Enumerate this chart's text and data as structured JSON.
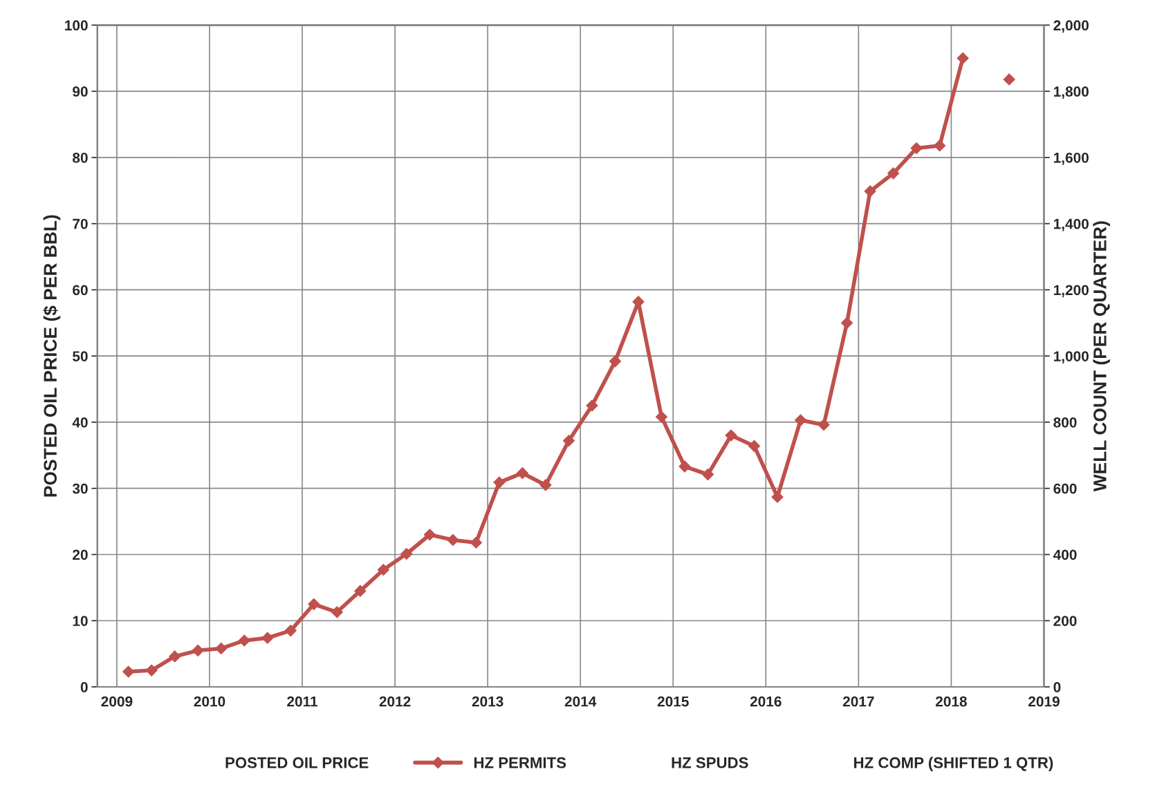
{
  "chart_data": {
    "type": "line",
    "ylabel": "POSTED OIL PRICE ($ PER BBL)",
    "y2label": "WELL COUNT (PER QUARTER)",
    "x": [
      2009.125,
      2009.375,
      2009.625,
      2009.875,
      2010.125,
      2010.375,
      2010.625,
      2010.875,
      2011.125,
      2011.375,
      2011.625,
      2011.875,
      2012.125,
      2012.375,
      2012.625,
      2012.875,
      2013.125,
      2013.375,
      2013.625,
      2013.875,
      2014.125,
      2014.375,
      2014.625,
      2014.875,
      2015.125,
      2015.375,
      2015.625,
      2015.875,
      2016.125,
      2016.375,
      2016.625,
      2016.875,
      2017.125,
      2017.375,
      2017.625,
      2017.875,
      2018.125,
      2018.375,
      2018.625
    ],
    "series": [
      {
        "name": "POSTED OIL PRICE",
        "values": [
          null,
          null,
          null,
          null,
          null,
          null,
          null,
          null,
          null,
          null,
          null,
          null,
          null,
          null,
          null,
          null,
          null,
          null,
          null,
          null,
          null,
          null,
          null,
          null,
          null,
          null,
          null,
          null,
          null,
          null,
          null,
          null,
          null,
          null,
          null,
          null,
          null,
          null,
          null
        ]
      },
      {
        "name": "HZ PERMITS",
        "color": "#c0504d",
        "axis": "y2",
        "marker": "diamond",
        "values": [
          46,
          50,
          92,
          110,
          116,
          140,
          148,
          170,
          250,
          226,
          290,
          354,
          402,
          460,
          444,
          436,
          618,
          646,
          610,
          744,
          850,
          984,
          1164,
          816,
          666,
          642,
          760,
          728,
          574,
          806,
          792,
          1100,
          1498,
          1552,
          1628,
          1636,
          1900,
          null,
          1836
        ]
      },
      {
        "name": "HZ SPUDS",
        "axis": "y2",
        "values": [
          null,
          null,
          null,
          null,
          null,
          null,
          null,
          null,
          null,
          null,
          null,
          null,
          null,
          null,
          null,
          null,
          null,
          null,
          null,
          null,
          null,
          null,
          null,
          null,
          null,
          null,
          null,
          null,
          null,
          null,
          null,
          null,
          null,
          null,
          null,
          null,
          null,
          null,
          null
        ]
      },
      {
        "name": "HZ COMP (SHIFTED 1 QTR)",
        "axis": "y2",
        "values": [
          null,
          null,
          null,
          null,
          null,
          null,
          null,
          null,
          null,
          null,
          null,
          null,
          null,
          null,
          null,
          null,
          null,
          null,
          null,
          null,
          null,
          null,
          null,
          null,
          null,
          null,
          null,
          null,
          null,
          null,
          null,
          null,
          null,
          null,
          null,
          null,
          null,
          null,
          null
        ]
      }
    ],
    "xlim": [
      2008.79,
      2019
    ],
    "xticks": [
      2009,
      2010,
      2011,
      2012,
      2013,
      2014,
      2015,
      2016,
      2017,
      2018,
      2019
    ],
    "ylim": [
      0,
      100
    ],
    "yticks": [
      0,
      10,
      20,
      30,
      40,
      50,
      60,
      70,
      80,
      90,
      100
    ],
    "y2lim": [
      0,
      2000
    ],
    "y2ticks": [
      0,
      {
        "value": 200,
        "label": "200"
      },
      {
        "value": 400,
        "label": "400"
      },
      {
        "value": 600,
        "label": "600"
      },
      {
        "value": 800,
        "label": "800"
      },
      {
        "value": 1000,
        "label": "1,000"
      },
      {
        "value": 1200,
        "label": "1,200"
      },
      {
        "value": 1400,
        "label": "1,400"
      },
      {
        "value": 1600,
        "label": "1,600"
      },
      {
        "value": 1800,
        "label": "1,800"
      },
      {
        "value": 2000,
        "label": "2,000"
      }
    ],
    "grid": true,
    "legend": "bottom",
    "line_style": "solid"
  }
}
